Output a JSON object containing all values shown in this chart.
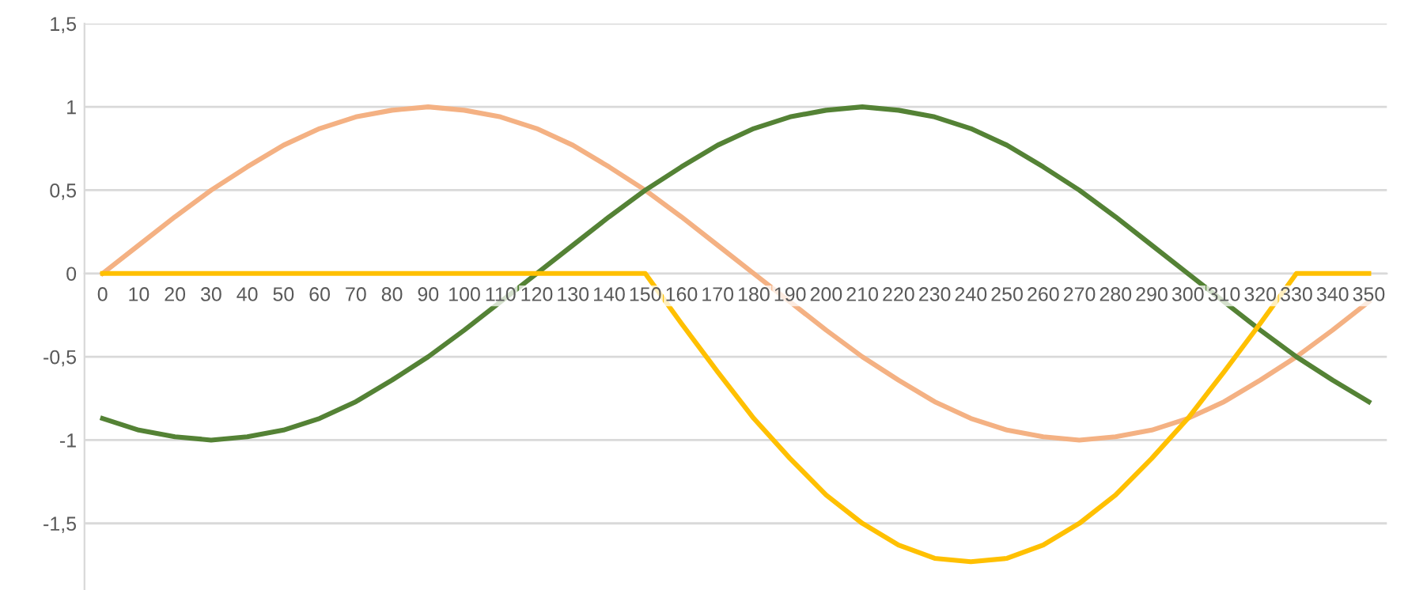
{
  "chart_data": {
    "type": "line",
    "categories": [
      "0",
      "10",
      "20",
      "30",
      "40",
      "50",
      "60",
      "70",
      "80",
      "90",
      "100",
      "110",
      "120",
      "130",
      "140",
      "150",
      "160",
      "170",
      "180",
      "190",
      "200",
      "210",
      "220",
      "230",
      "240",
      "250",
      "260",
      "270",
      "280",
      "290",
      "300",
      "310",
      "320",
      "330",
      "340",
      "350"
    ],
    "series": [
      {
        "color": "#f4b183",
        "values": [
          0,
          0.17,
          0.34,
          0.5,
          0.64,
          0.77,
          0.87,
          0.94,
          0.98,
          1,
          0.98,
          0.94,
          0.87,
          0.77,
          0.64,
          0.5,
          0.34,
          0.17,
          0,
          -0.17,
          -0.34,
          -0.5,
          -0.64,
          -0.77,
          -0.87,
          -0.94,
          -0.98,
          -1,
          -0.98,
          -0.94,
          -0.87,
          -0.77,
          -0.64,
          -0.5,
          -0.34,
          -0.17
        ]
      },
      {
        "color": "#548235",
        "values": [
          -0.87,
          -0.94,
          -0.98,
          -1,
          -0.98,
          -0.94,
          -0.87,
          -0.77,
          -0.64,
          -0.5,
          -0.34,
          -0.17,
          0,
          0.17,
          0.34,
          0.5,
          0.64,
          0.77,
          0.87,
          0.94,
          0.98,
          1,
          0.98,
          0.94,
          0.87,
          0.77,
          0.64,
          0.5,
          0.34,
          0.17,
          0,
          -0.17,
          -0.34,
          -0.5,
          -0.64,
          -0.77
        ]
      },
      {
        "color": "#ffc000",
        "values": [
          0,
          0,
          0,
          0,
          0,
          0,
          0,
          0,
          0,
          0,
          0,
          0,
          0,
          0,
          0,
          0,
          -0.3,
          -0.59,
          -0.87,
          -1.11,
          -1.33,
          -1.5,
          -1.63,
          -1.71,
          -1.73,
          -1.71,
          -1.63,
          -1.5,
          -1.33,
          -1.11,
          -0.87,
          -0.59,
          -0.3,
          0,
          0,
          0
        ]
      }
    ],
    "ylim": [
      -1.9,
      1.5
    ],
    "yticks": [
      {
        "value": -1.5,
        "label": "-1,5"
      },
      {
        "value": -1,
        "label": "-1"
      },
      {
        "value": -0.5,
        "label": "-0,5"
      },
      0,
      {
        "value": 0.5,
        "label": "0,5"
      },
      1,
      {
        "value": 1.5,
        "label": "1,5"
      }
    ],
    "grid": "y",
    "legend": false,
    "marker": "none",
    "line_style": "solid"
  }
}
